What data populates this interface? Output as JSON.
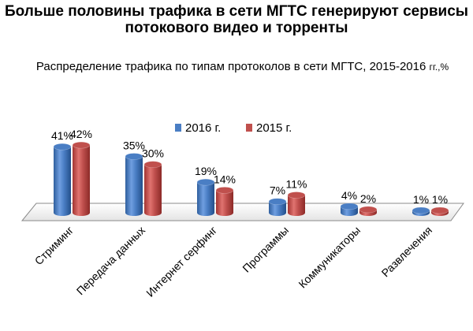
{
  "title": "Больше половины трафика в сети МГТС генерируют сервисы потокового видео и торренты",
  "subtitle": "Распределение трафика по типам  протоколов в сети МГТС, 2015-2016",
  "subtitle_unit": "гг.,%",
  "chart_data": {
    "type": "bar",
    "style": "3d-cylinder",
    "categories": [
      "Стриминг",
      "Передача данных",
      "Интернет серфинг",
      "Программы",
      "Коммуникаторы",
      "Развлечения"
    ],
    "series": [
      {
        "name": "2016 г.",
        "values": [
          41,
          35,
          19,
          7,
          4,
          1
        ],
        "labels": [
          "41%",
          "35%",
          "19%",
          "7%",
          "4%",
          "1%"
        ],
        "color": "#4a7ec4"
      },
      {
        "name": "2015 г.",
        "values": [
          42,
          30,
          14,
          11,
          2,
          1
        ],
        "labels": [
          "42%",
          "30%",
          "14%",
          "11%",
          "2%",
          "1%"
        ],
        "color": "#c0504d"
      }
    ],
    "ylim": [
      0,
      45
    ],
    "grid": false,
    "legend": "top"
  }
}
